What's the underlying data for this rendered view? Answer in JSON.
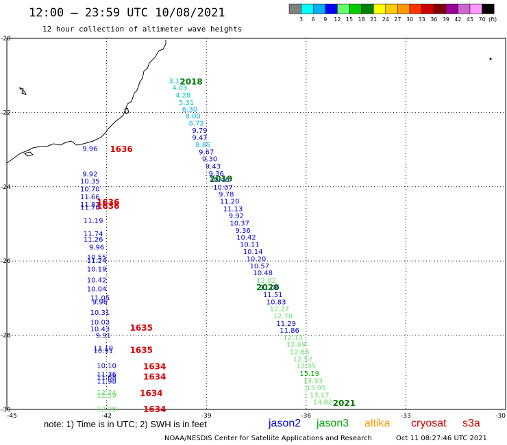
{
  "header": {
    "title": "12:00 – 23:59 UTC 10/08/2021",
    "subtitle": "12 hour collection of altimeter wave heights"
  },
  "colorbar": {
    "colors": [
      "#808080",
      "#00ffff",
      "#00b0f0",
      "#0000ff",
      "#66ff66",
      "#00cc00",
      "#008000",
      "#ffff00",
      "#ffcc00",
      "#ff9900",
      "#ff3300",
      "#cc0000",
      "#800000",
      "#990099",
      "#cc66cc",
      "#ff99ff",
      "#000000"
    ],
    "labels": [
      "3",
      "6",
      "9",
      "12",
      "15",
      "18",
      "21",
      "24",
      "27",
      "30",
      "33",
      "36",
      "39",
      "42",
      "45",
      "70"
    ],
    "unit": "(ft)"
  },
  "axes": {
    "x_ticks": [
      "-45",
      "-42",
      "-39",
      "-36",
      "-33",
      "-30"
    ],
    "y_ticks": [
      "-20",
      "-22",
      "-24",
      "-26",
      "-28",
      "-30"
    ],
    "xlim": [
      -45,
      -30
    ],
    "ylim": [
      -30,
      -20
    ]
  },
  "satellite_colors": {
    "jason2": "#0000cc",
    "jason3": "#00aa00",
    "altika": "#ff9900",
    "cryosat": "#cc0000",
    "s3a": "#cc0000",
    "time_green": "#007700",
    "time_red": "#dd0000"
  },
  "time_labels": [
    {
      "text": "2018",
      "lon": -39.8,
      "lat": -21.17,
      "color": "#007700"
    },
    {
      "text": "2019",
      "lon": -38.9,
      "lat": -23.79,
      "color": "#007700"
    },
    {
      "text": "2020",
      "lon": -37.5,
      "lat": -26.72,
      "color": "#007700"
    },
    {
      "text": "2021",
      "lon": -35.2,
      "lat": -29.83,
      "color": "#007700"
    },
    {
      "text": "1636",
      "lon": -41.9,
      "lat": -22.99,
      "color": "#dd0000"
    },
    {
      "text": "1636",
      "lon": -42.3,
      "lat": -24.42,
      "color": "#dd0000"
    },
    {
      "text": "1636",
      "lon": -42.3,
      "lat": -24.52,
      "color": "#dd0000"
    },
    {
      "text": "1635",
      "lon": -41.3,
      "lat": -27.8,
      "color": "#dd0000"
    },
    {
      "text": "1635",
      "lon": -41.3,
      "lat": -28.4,
      "color": "#dd0000"
    },
    {
      "text": "1634",
      "lon": -40.9,
      "lat": -28.85,
      "color": "#dd0000"
    },
    {
      "text": "1634",
      "lon": -40.9,
      "lat": -29.12,
      "color": "#dd0000"
    },
    {
      "text": "1634",
      "lon": -41.0,
      "lat": -29.57,
      "color": "#dd0000"
    },
    {
      "text": "1634",
      "lon": -40.9,
      "lat": -30.0,
      "color": "#dd0000"
    }
  ],
  "track_values": [
    {
      "text": "3.11",
      "lon": -39.9,
      "lat": -21.15,
      "color": "#00cccc"
    },
    {
      "text": "4.03",
      "lon": -39.8,
      "lat": -21.34,
      "color": "#00cccc"
    },
    {
      "text": "4.28",
      "lon": -39.7,
      "lat": -21.54,
      "color": "#00cccc"
    },
    {
      "text": "5.31",
      "lon": -39.6,
      "lat": -21.73,
      "color": "#00cccc"
    },
    {
      "text": "6.30",
      "lon": -39.5,
      "lat": -21.92,
      "color": "#00b0f0"
    },
    {
      "text": "8.00",
      "lon": -39.4,
      "lat": -22.1,
      "color": "#00b0f0"
    },
    {
      "text": "8.72",
      "lon": -39.3,
      "lat": -22.3,
      "color": "#00b0f0"
    },
    {
      "text": "9.79",
      "lon": -39.2,
      "lat": -22.49,
      "color": "#0000cc"
    },
    {
      "text": "9.47",
      "lon": -39.2,
      "lat": -22.68,
      "color": "#0000cc"
    },
    {
      "text": "8.85",
      "lon": -39.1,
      "lat": -22.88,
      "color": "#00b0f0"
    },
    {
      "text": "9.67",
      "lon": -39.0,
      "lat": -23.07,
      "color": "#0000cc"
    },
    {
      "text": "9.30",
      "lon": -38.9,
      "lat": -23.26,
      "color": "#0000cc"
    },
    {
      "text": "9.43",
      "lon": -38.8,
      "lat": -23.46,
      "color": "#0000cc"
    },
    {
      "text": "9.36",
      "lon": -38.7,
      "lat": -23.65,
      "color": "#0000cc"
    },
    {
      "text": "10.46",
      "lon": -38.6,
      "lat": -23.82,
      "color": "#0000cc"
    },
    {
      "text": "10.07",
      "lon": -38.5,
      "lat": -24.02,
      "color": "#0000cc"
    },
    {
      "text": "9.78",
      "lon": -38.4,
      "lat": -24.21,
      "color": "#0000cc"
    },
    {
      "text": "11.20",
      "lon": -38.3,
      "lat": -24.4,
      "color": "#0000cc"
    },
    {
      "text": "11.13",
      "lon": -38.2,
      "lat": -24.6,
      "color": "#0000cc"
    },
    {
      "text": "9.92",
      "lon": -38.1,
      "lat": -24.79,
      "color": "#0000cc"
    },
    {
      "text": "10.37",
      "lon": -38.0,
      "lat": -24.99,
      "color": "#0000cc"
    },
    {
      "text": "9.36",
      "lon": -37.9,
      "lat": -25.18,
      "color": "#0000cc"
    },
    {
      "text": "10.42",
      "lon": -37.8,
      "lat": -25.37,
      "color": "#0000cc"
    },
    {
      "text": "10.11",
      "lon": -37.7,
      "lat": -25.56,
      "color": "#0000cc"
    },
    {
      "text": "10.14",
      "lon": -37.6,
      "lat": -25.76,
      "color": "#0000cc"
    },
    {
      "text": "10.20",
      "lon": -37.5,
      "lat": -25.95,
      "color": "#0000cc"
    },
    {
      "text": "10.57",
      "lon": -37.4,
      "lat": -26.14,
      "color": "#0000cc"
    },
    {
      "text": "10.48",
      "lon": -37.3,
      "lat": -26.33,
      "color": "#0000cc"
    },
    {
      "text": "12.02",
      "lon": -37.2,
      "lat": -26.53,
      "color": "#66dd66"
    },
    {
      "text": "11.06",
      "lon": -37.1,
      "lat": -26.72,
      "color": "#0000cc"
    },
    {
      "text": "11.51",
      "lon": -37.0,
      "lat": -26.92,
      "color": "#0000cc"
    },
    {
      "text": "10.83",
      "lon": -36.9,
      "lat": -27.11,
      "color": "#0000cc"
    },
    {
      "text": "12.27",
      "lon": -36.8,
      "lat": -27.3,
      "color": "#66dd66"
    },
    {
      "text": "12.78",
      "lon": -36.7,
      "lat": -27.49,
      "color": "#66dd66"
    },
    {
      "text": "11.29",
      "lon": -36.6,
      "lat": -27.69,
      "color": "#0000cc"
    },
    {
      "text": "11.86",
      "lon": -36.5,
      "lat": -27.88,
      "color": "#0000cc"
    },
    {
      "text": "12.13",
      "lon": -36.4,
      "lat": -28.07,
      "color": "#66dd66"
    },
    {
      "text": "12.69",
      "lon": -36.3,
      "lat": -28.26,
      "color": "#66dd66"
    },
    {
      "text": "12.66",
      "lon": -36.2,
      "lat": -28.46,
      "color": "#66dd66"
    },
    {
      "text": "12.57",
      "lon": -36.1,
      "lat": -28.65,
      "color": "#66dd66"
    },
    {
      "text": "12.85",
      "lon": -36.0,
      "lat": -28.84,
      "color": "#66dd66"
    },
    {
      "text": "15.19",
      "lon": -35.9,
      "lat": -29.04,
      "color": "#00aa00"
    },
    {
      "text": "13.93",
      "lon": -35.8,
      "lat": -29.23,
      "color": "#66dd66"
    },
    {
      "text": "13.95",
      "lon": -35.7,
      "lat": -29.43,
      "color": "#66dd66"
    },
    {
      "text": "13.17",
      "lon": -35.6,
      "lat": -29.62,
      "color": "#66dd66"
    },
    {
      "text": "14.82",
      "lon": -35.5,
      "lat": -29.81,
      "color": "#66dd66"
    },
    {
      "text": "9.96",
      "lon": -42.5,
      "lat": -22.98,
      "color": "#0000cc"
    },
    {
      "text": "9.92",
      "lon": -42.5,
      "lat": -23.66,
      "color": "#0000cc"
    },
    {
      "text": "10.35",
      "lon": -42.5,
      "lat": -23.86,
      "color": "#0000cc"
    },
    {
      "text": "10.70",
      "lon": -42.5,
      "lat": -24.07,
      "color": "#0000cc"
    },
    {
      "text": "11.66",
      "lon": -42.5,
      "lat": -24.28,
      "color": "#0000cc"
    },
    {
      "text": "11.82",
      "lon": -42.5,
      "lat": -24.48,
      "color": "#0000cc"
    },
    {
      "text": "11.70",
      "lon": -42.5,
      "lat": -24.57,
      "color": "#0000cc"
    },
    {
      "text": "11.19",
      "lon": -42.4,
      "lat": -24.93,
      "color": "#0000cc"
    },
    {
      "text": "11.74",
      "lon": -42.4,
      "lat": -25.28,
      "color": "#0000cc"
    },
    {
      "text": "11.26",
      "lon": -42.4,
      "lat": -25.42,
      "color": "#0000cc"
    },
    {
      "text": "9.96",
      "lon": -42.3,
      "lat": -25.64,
      "color": "#0000cc"
    },
    {
      "text": "10.55",
      "lon": -42.3,
      "lat": -25.9,
      "color": "#0000cc"
    },
    {
      "text": "11.24",
      "lon": -42.3,
      "lat": -26.0,
      "color": "#0000cc"
    },
    {
      "text": "10.19",
      "lon": -42.3,
      "lat": -26.23,
      "color": "#0000cc"
    },
    {
      "text": "10.42",
      "lon": -42.3,
      "lat": -26.52,
      "color": "#0000cc"
    },
    {
      "text": "10.04",
      "lon": -42.3,
      "lat": -26.76,
      "color": "#0000cc"
    },
    {
      "text": "11.05",
      "lon": -42.2,
      "lat": -27.0,
      "color": "#0000cc"
    },
    {
      "text": "9.96",
      "lon": -42.2,
      "lat": -27.11,
      "color": "#0000cc"
    },
    {
      "text": "10.31",
      "lon": -42.2,
      "lat": -27.4,
      "color": "#0000cc"
    },
    {
      "text": "10.03",
      "lon": -42.2,
      "lat": -27.66,
      "color": "#0000cc"
    },
    {
      "text": "10.43",
      "lon": -42.2,
      "lat": -27.84,
      "color": "#0000cc"
    },
    {
      "text": "9.91",
      "lon": -42.1,
      "lat": -28.02,
      "color": "#0000cc"
    },
    {
      "text": "11.10",
      "lon": -42.1,
      "lat": -28.36,
      "color": "#0000cc"
    },
    {
      "text": "10.91",
      "lon": -42.1,
      "lat": -28.43,
      "color": "#0000cc"
    },
    {
      "text": "10.10",
      "lon": -42.0,
      "lat": -28.83,
      "color": "#0000cc"
    },
    {
      "text": "11.36",
      "lon": -42.0,
      "lat": -29.06,
      "color": "#0000cc"
    },
    {
      "text": "11.68",
      "lon": -42.0,
      "lat": -29.14,
      "color": "#0000cc"
    },
    {
      "text": "11.98",
      "lon": -42.0,
      "lat": -29.25,
      "color": "#0000cc"
    },
    {
      "text": "12.74",
      "lon": -42.0,
      "lat": -29.56,
      "color": "#66dd66"
    },
    {
      "text": "12.59",
      "lon": -42.0,
      "lat": -29.63,
      "color": "#66dd66"
    },
    {
      "text": "12.28",
      "lon": -42.0,
      "lat": -30.0,
      "color": "#66dd66"
    }
  ],
  "footer": {
    "note": "note:  1) Time is in UTC;  2) SWH is in feet",
    "legend": [
      {
        "name": "jason2",
        "color": "#0000cc"
      },
      {
        "name": "jason3",
        "color": "#00aa00"
      },
      {
        "name": "altika",
        "color": "#ff9900"
      },
      {
        "name": "cryosat",
        "color": "#cc0000"
      },
      {
        "name": "s3a",
        "color": "#cc0000"
      }
    ],
    "credit": "NOAA/NESDIS Center for Satellite Applications and Research",
    "timestamp": "Oct 11 08:27:46 UTC 2021"
  }
}
